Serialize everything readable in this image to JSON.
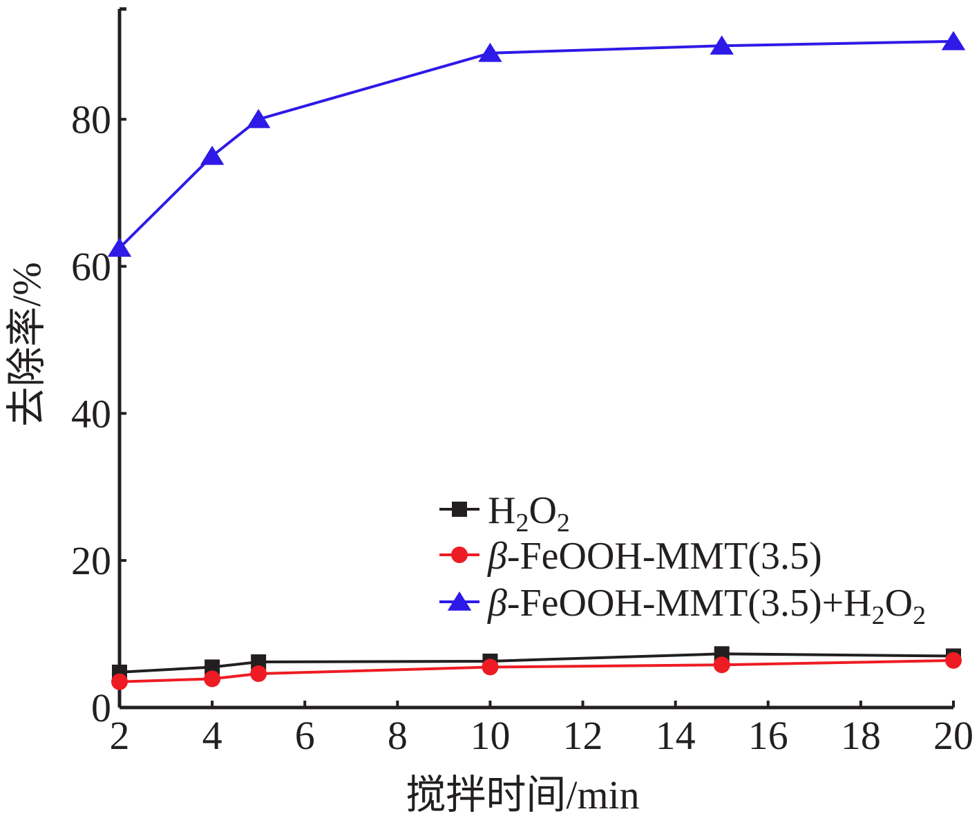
{
  "chart_data": {
    "type": "line",
    "title": "",
    "xlabel": "搅拌时间/min",
    "ylabel": "去除率/%",
    "xlim": [
      2,
      20
    ],
    "ylim": [
      0,
      95
    ],
    "xticks": [
      2,
      4,
      6,
      8,
      10,
      12,
      14,
      16,
      18,
      20
    ],
    "yticks": [
      0,
      20,
      40,
      60,
      80
    ],
    "x": [
      2,
      4,
      5,
      10,
      15,
      20
    ],
    "grid": false,
    "legend_position": "lower-right",
    "series": [
      {
        "name": "H2O2",
        "legend_parts": [
          {
            "text": "H",
            "sub": false,
            "italic": false
          },
          {
            "text": "2",
            "sub": true,
            "italic": false
          },
          {
            "text": "O",
            "sub": false,
            "italic": false
          },
          {
            "text": "2",
            "sub": true,
            "italic": false
          }
        ],
        "color": "#231f20",
        "marker": "square",
        "values": [
          4.8,
          5.5,
          6.2,
          6.3,
          7.3,
          7.0
        ]
      },
      {
        "name": "β-FeOOH-MMT(3.5)",
        "legend_parts": [
          {
            "text": "β",
            "sub": false,
            "italic": true
          },
          {
            "text": "-FeOOH-MMT(3.5)",
            "sub": false,
            "italic": false
          }
        ],
        "color": "#ed1c24",
        "marker": "circle",
        "values": [
          3.5,
          3.9,
          4.6,
          5.5,
          5.8,
          6.4
        ]
      },
      {
        "name": "β-FeOOH-MMT(3.5)+H2O2",
        "legend_parts": [
          {
            "text": "β",
            "sub": false,
            "italic": true
          },
          {
            "text": "-FeOOH-MMT(3.5)+H",
            "sub": false,
            "italic": false
          },
          {
            "text": "2",
            "sub": true,
            "italic": false
          },
          {
            "text": "O",
            "sub": false,
            "italic": false
          },
          {
            "text": "2",
            "sub": true,
            "italic": false
          }
        ],
        "color": "#2e1ae6",
        "marker": "triangle",
        "values": [
          62.5,
          75.0,
          80.0,
          89.0,
          90.0,
          90.6
        ]
      }
    ]
  }
}
